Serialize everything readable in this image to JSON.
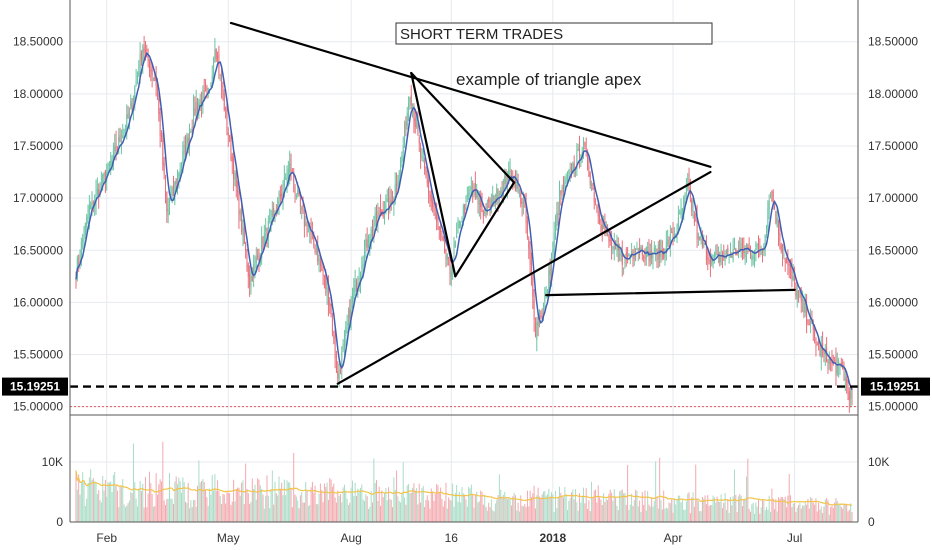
{
  "chart_data": {
    "type": "candlestick",
    "title_box": "SHORT TERM TRADES",
    "annotation": "example of triangle apex",
    "price_axis": {
      "ylim": [
        14.92,
        18.9
      ],
      "ticks": [
        15.0,
        15.5,
        16.0,
        16.5,
        17.0,
        17.5,
        18.0,
        18.5
      ],
      "tick_labels": [
        "15.00000",
        "15.50000",
        "16.00000",
        "16.50000",
        "17.00000",
        "17.50000",
        "18.00000",
        "18.50000"
      ]
    },
    "current_price": {
      "value": 15.19251,
      "label": "15.19251"
    },
    "volume_axis": {
      "ylim": [
        0,
        17000
      ],
      "ticks": [
        0,
        10000
      ],
      "tick_labels": [
        "0",
        "10K"
      ]
    },
    "x_axis": {
      "labels": [
        {
          "label": "Feb",
          "day": 23,
          "bold": false
        },
        {
          "label": "May",
          "day": 114,
          "bold": false
        },
        {
          "label": "Aug",
          "day": 206,
          "bold": false
        },
        {
          "label": "16",
          "day": 281,
          "bold": false
        },
        {
          "label": "2018",
          "day": 357,
          "bold": true
        },
        {
          "label": "Apr",
          "day": 447,
          "bold": false
        },
        {
          "label": "Jul",
          "day": 538,
          "bold": false
        }
      ],
      "day_range": [
        0,
        581
      ]
    },
    "price_anchors": [
      [
        0,
        16.3
      ],
      [
        10,
        16.9
      ],
      [
        25,
        17.3
      ],
      [
        40,
        17.8
      ],
      [
        50,
        18.45
      ],
      [
        60,
        18.1
      ],
      [
        68,
        16.85
      ],
      [
        80,
        17.4
      ],
      [
        90,
        17.9
      ],
      [
        100,
        18.0
      ],
      [
        104,
        18.5
      ],
      [
        112,
        17.8
      ],
      [
        122,
        16.9
      ],
      [
        130,
        16.2
      ],
      [
        140,
        16.6
      ],
      [
        150,
        16.9
      ],
      [
        160,
        17.3
      ],
      [
        170,
        16.8
      ],
      [
        180,
        16.5
      ],
      [
        190,
        16.0
      ],
      [
        196,
        15.25
      ],
      [
        206,
        16.0
      ],
      [
        216,
        16.5
      ],
      [
        226,
        16.85
      ],
      [
        236,
        16.95
      ],
      [
        244,
        17.4
      ],
      [
        250,
        18.05
      ],
      [
        258,
        17.4
      ],
      [
        270,
        16.75
      ],
      [
        280,
        16.3
      ],
      [
        288,
        16.8
      ],
      [
        296,
        17.1
      ],
      [
        306,
        16.85
      ],
      [
        316,
        17.05
      ],
      [
        326,
        17.25
      ],
      [
        336,
        16.9
      ],
      [
        344,
        15.75
      ],
      [
        352,
        16.05
      ],
      [
        362,
        17.0
      ],
      [
        372,
        17.3
      ],
      [
        380,
        17.5
      ],
      [
        390,
        16.9
      ],
      [
        400,
        16.55
      ],
      [
        410,
        16.4
      ],
      [
        420,
        16.55
      ],
      [
        430,
        16.45
      ],
      [
        440,
        16.5
      ],
      [
        450,
        16.7
      ],
      [
        458,
        17.1
      ],
      [
        466,
        16.6
      ],
      [
        476,
        16.4
      ],
      [
        486,
        16.45
      ],
      [
        496,
        16.5
      ],
      [
        506,
        16.5
      ],
      [
        514,
        16.5
      ],
      [
        520,
        17.1
      ],
      [
        528,
        16.55
      ],
      [
        538,
        16.15
      ],
      [
        548,
        15.85
      ],
      [
        556,
        15.55
      ],
      [
        566,
        15.4
      ],
      [
        574,
        15.35
      ],
      [
        581,
        15.05
      ]
    ],
    "moving_average": {
      "type": "price",
      "color": "#3f5fb3"
    },
    "volume_average": {
      "color": "#f2c44a"
    },
    "trendlines": [
      {
        "name": "triangle-upper",
        "points": [
          [
            116,
            18.68
          ],
          [
            475,
            17.3
          ]
        ]
      },
      {
        "name": "triangle-lower",
        "points": [
          [
            196,
            15.22
          ],
          [
            475,
            17.25
          ]
        ]
      },
      {
        "name": "pennant-upper",
        "points": [
          [
            251,
            18.2
          ],
          [
            328,
            17.15
          ]
        ]
      },
      {
        "name": "pennant-lower",
        "points": [
          [
            284,
            16.25
          ],
          [
            328,
            17.15
          ]
        ]
      },
      {
        "name": "drop-leg",
        "points": [
          [
            251,
            18.2
          ],
          [
            284,
            16.25
          ]
        ]
      },
      {
        "name": "support",
        "points": [
          [
            352,
            16.07
          ],
          [
            538,
            16.12
          ]
        ]
      }
    ],
    "horizontal_lines": [
      {
        "name": "current-price-line",
        "value": 15.19251,
        "style": "dashed",
        "color": "#000000"
      },
      {
        "name": "low-line",
        "value": 15.0,
        "style": "dotted",
        "color": "#e05a5a"
      }
    ],
    "colors": {
      "up": "#6cc4a4",
      "down": "#e8707a",
      "vol_up": "#a9dcc6",
      "vol_down": "#f3a9ae",
      "grid": "#e6eaf0",
      "trend": "#000000"
    }
  }
}
